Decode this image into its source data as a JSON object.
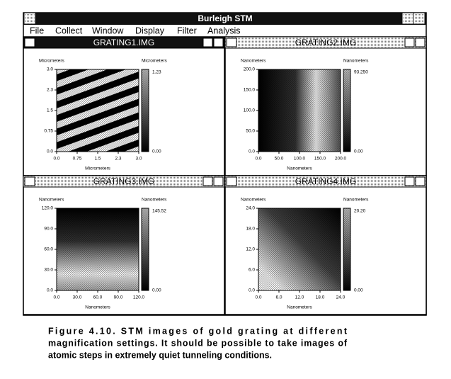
{
  "window": {
    "title": "Burleigh STM"
  },
  "menu": [
    "File",
    "Collect",
    "Window",
    "Display",
    "Filter",
    "Analysis"
  ],
  "panes": [
    {
      "title": "GRATING1.IMG",
      "y_label": "Micrometers",
      "z_label": "Micrometers",
      "x_label": "Micrometers",
      "y_ticks": [
        "3.0",
        "2.3",
        "1.5",
        "0.75",
        "0.0"
      ],
      "x_ticks": [
        "0.0",
        "0.75",
        "1.5",
        "2.3",
        "3.0"
      ],
      "z_max": "1.23",
      "z_min": "0.00"
    },
    {
      "title": "GRATING2.IMG",
      "y_label": "Nanometers",
      "z_label": "Nanometers",
      "x_label": "Nanometers",
      "y_ticks": [
        "200.0",
        "150.0",
        "100.0",
        "50.0",
        "0.0"
      ],
      "x_ticks": [
        "0.0",
        "50.0",
        "100.0",
        "150.0",
        "200.0"
      ],
      "z_max": "93.250",
      "z_min": "0.00"
    },
    {
      "title": "GRATING3.IMG",
      "y_label": "Nanometers",
      "z_label": "Nanometers",
      "x_label": "Nanometers",
      "y_ticks": [
        "120.0",
        "90.0",
        "60.0",
        "30.0",
        "0.0"
      ],
      "x_ticks": [
        "0.0",
        "30.0",
        "60.0",
        "90.0",
        "120.0"
      ],
      "z_max": "145.52",
      "z_min": "0.00"
    },
    {
      "title": "GRATING4.IMG",
      "y_label": "Nanometers",
      "z_label": "Nanometers",
      "x_label": "Nanometers",
      "y_ticks": [
        "24.0",
        "18.0",
        "12.0",
        "6.0",
        "0.0"
      ],
      "x_ticks": [
        "0.0",
        "6.0",
        "12.0",
        "18.0",
        "24.0"
      ],
      "z_max": "20.20",
      "z_min": "0.00"
    }
  ],
  "caption": {
    "lines": [
      "Figure 4.10. STM images of gold grating at different",
      "magnification settings. It should be possible to take images of",
      "atomic steps in extremely quiet tunneling conditions."
    ]
  }
}
